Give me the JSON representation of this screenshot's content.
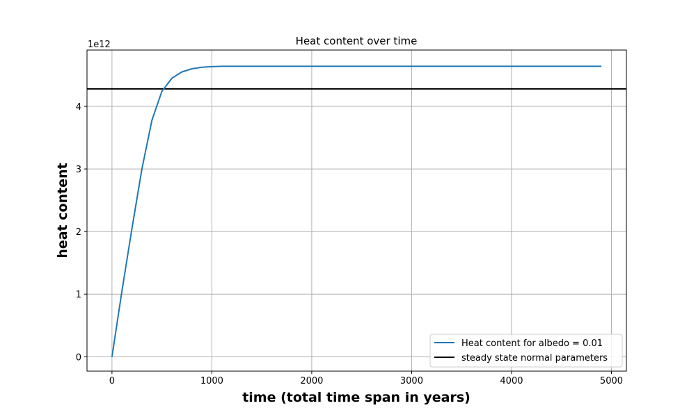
{
  "chart_data": {
    "type": "line",
    "title": "Heat content over time",
    "xlabel": "time (total time span in years)",
    "ylabel": "heat content",
    "y_offset_label": "1e12",
    "xlim": [
      -250,
      5150
    ],
    "ylim": [
      -0.23,
      4.9
    ],
    "x_ticks": [
      0,
      1000,
      2000,
      3000,
      4000,
      5000
    ],
    "y_ticks": [
      0,
      1,
      2,
      3,
      4
    ],
    "grid": true,
    "legend_position": "lower-right",
    "series": [
      {
        "name": "Heat content for albedo = 0.01",
        "color": "#1f77b4",
        "x": [
          0,
          100,
          200,
          300,
          400,
          500,
          600,
          700,
          800,
          900,
          1000,
          1100,
          1200,
          1500,
          2000,
          2500,
          3000,
          3500,
          4000,
          4500,
          4900
        ],
        "y": [
          0,
          1.05,
          2.05,
          3.0,
          3.78,
          4.24,
          4.45,
          4.55,
          4.6,
          4.625,
          4.635,
          4.64,
          4.64,
          4.64,
          4.64,
          4.64,
          4.64,
          4.64,
          4.64,
          4.64,
          4.64
        ]
      }
    ],
    "hlines": [
      {
        "name": "steady state normal parameters",
        "y": 4.28,
        "color": "#000000"
      }
    ]
  }
}
